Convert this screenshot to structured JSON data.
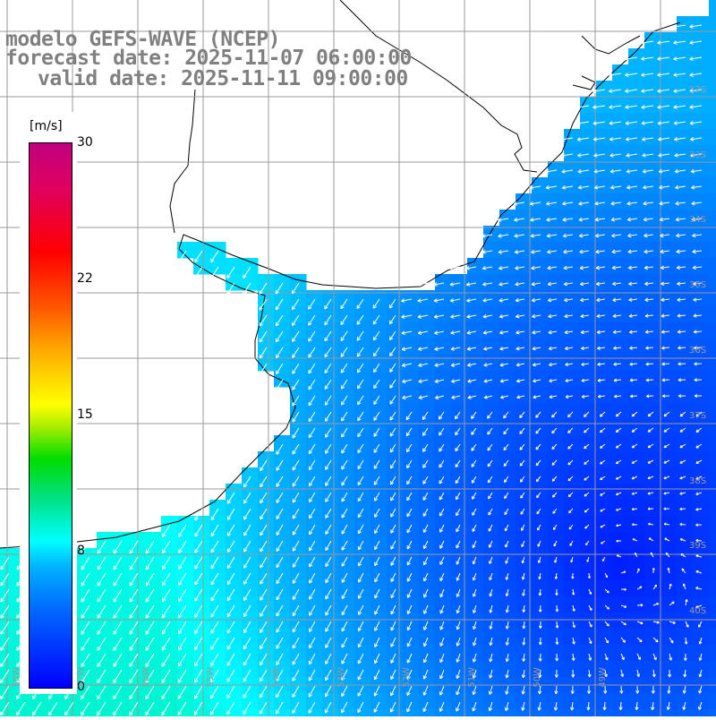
{
  "title": {
    "line1": "modelo GEFS-WAVE (NCEP)",
    "line2": "forecast date: 2025-11-07 06:00:00",
    "line3": "valid date: 2025-11-11 09:00:00"
  },
  "colorbar": {
    "units": "[m/s]",
    "min": 0,
    "max": 30,
    "ticks": [
      "30",
      "22",
      "15",
      "8",
      "0"
    ],
    "colors": [
      "#0000ff",
      "#0066ff",
      "#00b0ff",
      "#00ffff",
      "#00e080",
      "#00dd00",
      "#aaee00",
      "#ffff00",
      "#ffaa00",
      "#ff5500",
      "#ff0000",
      "#e00060",
      "#c00080"
    ]
  },
  "map": {
    "variable": "wind speed and direction",
    "region": "Rio de la Plata / Uruguay / southern Brazil coast",
    "lat_labels": [
      "32S",
      "33S",
      "34S",
      "35S",
      "36S",
      "37S",
      "38S",
      "39S",
      "40S"
    ],
    "lon_labels": [
      "58W",
      "57W",
      "56W",
      "55W",
      "54W",
      "53W",
      "52W",
      "51W",
      "50W",
      "49W"
    ],
    "colors": {
      "land": "#ffffff",
      "coast": "#000000",
      "grid": "#9a9a9a",
      "arrow": "#ffffff"
    },
    "speed_note": "weak winds (~2-4 m/s) east of region, stronger SW-ward flow (~6-9 m/s) near coast"
  }
}
